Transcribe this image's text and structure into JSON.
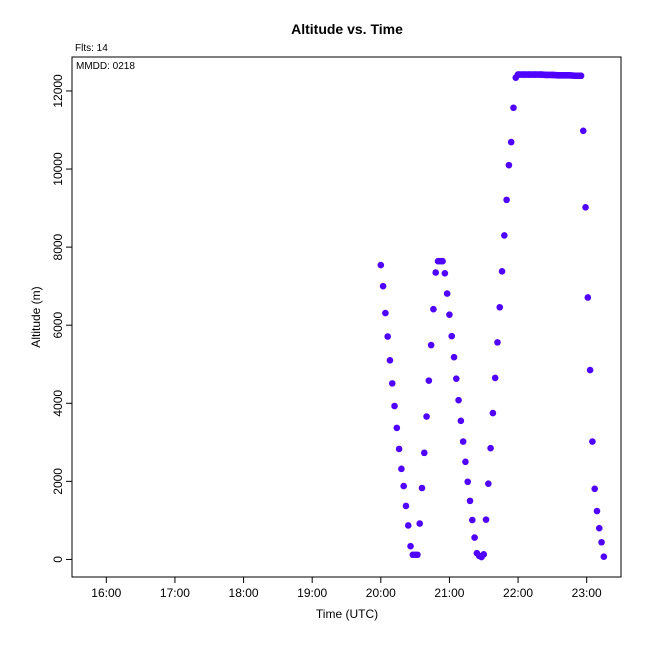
{
  "chart_data": {
    "type": "scatter",
    "title": "Altitude  vs. Time",
    "flights_label": "Flts: 14",
    "date_label": "MMDD: 0218",
    "xlabel": "Time (UTC)",
    "ylabel": "Altitude (m)",
    "xlim": [
      "15:30",
      "23:30"
    ],
    "ylim": [
      -450,
      12870
    ],
    "x_ticks": [
      "16:00",
      "17:00",
      "18:00",
      "19:00",
      "20:00",
      "21:00",
      "22:00",
      "23:00"
    ],
    "y_ticks": [
      0,
      2000,
      4000,
      6000,
      8000,
      10000,
      12000
    ],
    "grid": false,
    "marker_color": "#5000ff",
    "series": [
      {
        "name": "",
        "points": [
          [
            "20:00",
            7540
          ],
          [
            "20:02",
            7000
          ],
          [
            "20:04",
            6310
          ],
          [
            "20:06",
            5710
          ],
          [
            "20:08",
            5100
          ],
          [
            "20:10",
            4510
          ],
          [
            "20:12",
            3930
          ],
          [
            "20:14",
            3370
          ],
          [
            "20:16",
            2830
          ],
          [
            "20:18",
            2320
          ],
          [
            "20:20",
            1880
          ],
          [
            "20:22",
            1370
          ],
          [
            "20:24",
            870
          ],
          [
            "20:26",
            340
          ],
          [
            "20:28",
            120
          ],
          [
            "20:30",
            120
          ],
          [
            "20:32",
            120
          ],
          [
            "20:34",
            920
          ],
          [
            "20:36",
            1830
          ],
          [
            "20:38",
            2730
          ],
          [
            "20:40",
            3660
          ],
          [
            "20:42",
            4580
          ],
          [
            "20:44",
            5490
          ],
          [
            "20:46",
            6410
          ],
          [
            "20:48",
            7350
          ],
          [
            "20:50",
            7640
          ],
          [
            "20:52",
            7640
          ],
          [
            "20:54",
            7640
          ],
          [
            "20:56",
            7330
          ],
          [
            "20:58",
            6810
          ],
          [
            "21:00",
            6270
          ],
          [
            "21:02",
            5720
          ],
          [
            "21:04",
            5180
          ],
          [
            "21:06",
            4630
          ],
          [
            "21:08",
            4080
          ],
          [
            "21:10",
            3550
          ],
          [
            "21:12",
            3020
          ],
          [
            "21:14",
            2500
          ],
          [
            "21:16",
            1990
          ],
          [
            "21:18",
            1500
          ],
          [
            "21:20",
            1010
          ],
          [
            "21:22",
            560
          ],
          [
            "21:24",
            160
          ],
          [
            "21:26",
            90
          ],
          [
            "21:28",
            60
          ],
          [
            "21:30",
            130
          ],
          [
            "21:32",
            1020
          ],
          [
            "21:34",
            1940
          ],
          [
            "21:36",
            2850
          ],
          [
            "21:38",
            3750
          ],
          [
            "21:40",
            4650
          ],
          [
            "21:42",
            5560
          ],
          [
            "21:44",
            6460
          ],
          [
            "21:46",
            7380
          ],
          [
            "21:48",
            8300
          ],
          [
            "21:50",
            9210
          ],
          [
            "21:52",
            10100
          ],
          [
            "21:54",
            10690
          ],
          [
            "21:56",
            11570
          ],
          [
            "21:58",
            12340
          ],
          [
            "22:00",
            12420
          ],
          [
            "22:05",
            12420
          ],
          [
            "22:10",
            12420
          ],
          [
            "22:15",
            12420
          ],
          [
            "22:20",
            12420
          ],
          [
            "22:25",
            12410
          ],
          [
            "22:30",
            12410
          ],
          [
            "22:35",
            12400
          ],
          [
            "22:40",
            12400
          ],
          [
            "22:45",
            12400
          ],
          [
            "22:50",
            12390
          ],
          [
            "22:55",
            12390
          ],
          [
            "22:57",
            10980
          ],
          [
            "22:59",
            9020
          ],
          [
            "23:01",
            6710
          ],
          [
            "23:03",
            4850
          ],
          [
            "23:05",
            3020
          ],
          [
            "23:07",
            1810
          ],
          [
            "23:09",
            1240
          ],
          [
            "23:11",
            800
          ],
          [
            "23:13",
            440
          ],
          [
            "23:15",
            70
          ]
        ]
      }
    ]
  }
}
